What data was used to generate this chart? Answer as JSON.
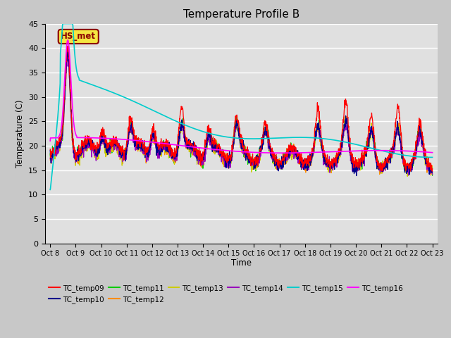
{
  "title": "Temperature Profile B",
  "xlabel": "Time",
  "ylabel": "Temperature (C)",
  "ylim": [
    0,
    45
  ],
  "yticks": [
    0,
    5,
    10,
    15,
    20,
    25,
    30,
    35,
    40,
    45
  ],
  "fig_bg_color": "#c8c8c8",
  "plot_bg_color": "#e0e0e0",
  "annotation_text": "HS_met",
  "annotation_color": "#8b0000",
  "annotation_bg": "#f5e642",
  "series_colors": {
    "TC_temp09": "#ff0000",
    "TC_temp10": "#00008b",
    "TC_temp11": "#00cc00",
    "TC_temp12": "#ff8c00",
    "TC_temp13": "#cccc00",
    "TC_temp14": "#9900bb",
    "TC_temp15": "#00cccc",
    "TC_temp16": "#ff00ff"
  },
  "x_tick_labels": [
    "Oct 8",
    "Oct 9",
    "Oct 10",
    "Oct 11",
    "Oct 12",
    "Oct 13",
    "Oct 14",
    "Oct 15",
    "Oct 16",
    "Oct 17",
    "Oct 18",
    "Oct 19",
    "Oct 20",
    "Oct 21",
    "Oct 22",
    "Oct 23"
  ]
}
